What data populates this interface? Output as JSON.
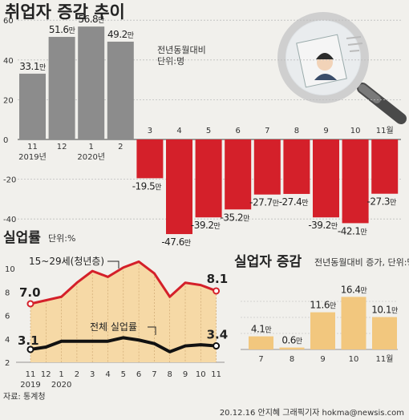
{
  "chart_data": [
    {
      "type": "bar",
      "title": "취업자 증감 추이",
      "note_lines": [
        "전년동월대비",
        "단위:명"
      ],
      "categories": [
        "11",
        "12",
        "1",
        "2",
        "3",
        "4",
        "5",
        "6",
        "7",
        "8",
        "9",
        "10",
        "11월"
      ],
      "year_labels": [
        {
          "text": "2019년",
          "at": 0
        },
        {
          "text": "2020년",
          "at": 2
        }
      ],
      "values": [
        33.1,
        51.6,
        56.8,
        49.2,
        -19.5,
        -47.6,
        -39.2,
        -35.2,
        -27.7,
        -27.4,
        -39.2,
        -42.1,
        -27.3
      ],
      "value_labels": [
        "33.1만",
        "51.6만",
        "56.8만",
        "49.2만",
        "-19.5만",
        "-47.6만",
        "-39.2만",
        "-35.2만",
        "-27.7만",
        "-27.4만",
        "-39.2만",
        "-42.1만",
        "-27.3만"
      ],
      "y_ticks": [
        60,
        40,
        20,
        0,
        -20,
        -40
      ],
      "ylim": [
        -55,
        65
      ],
      "colors": {
        "positive": "#8c8c8c",
        "negative": "#d4202a"
      }
    },
    {
      "type": "line",
      "title": "실업률",
      "unit": "단위:%",
      "categories": [
        "11",
        "12",
        "1",
        "2",
        "3",
        "4",
        "5",
        "6",
        "7",
        "8",
        "9",
        "10",
        "11"
      ],
      "year_labels": [
        {
          "text": "2019",
          "at": 0
        },
        {
          "text": "2020",
          "at": 2
        }
      ],
      "y_ticks": [
        2,
        4,
        6,
        8,
        10
      ],
      "ylim": [
        2,
        11
      ],
      "series": [
        {
          "name": "15~29세(청년층)",
          "values": [
            7.0,
            7.3,
            7.6,
            8.8,
            9.8,
            9.3,
            10.1,
            10.6,
            9.6,
            7.6,
            8.8,
            8.6,
            8.1
          ],
          "color": "#d4202a",
          "start_label": "7.0",
          "end_label": "8.1"
        },
        {
          "name": "전체 실업률",
          "values": [
            3.1,
            3.3,
            3.8,
            3.8,
            3.8,
            3.8,
            4.1,
            3.9,
            3.6,
            2.9,
            3.4,
            3.5,
            3.4
          ],
          "color": "#111111",
          "start_label": "3.1",
          "end_label": "3.4"
        }
      ]
    },
    {
      "type": "bar",
      "title": "실업자 증감",
      "unit": "전년동월대비 증가, 단위:명",
      "categories": [
        "7",
        "8",
        "9",
        "10",
        "11월"
      ],
      "values": [
        4.1,
        0.6,
        11.6,
        16.4,
        10.1
      ],
      "value_labels": [
        "4.1만",
        "0.6만",
        "11.6만",
        "16.4만",
        "10.1만"
      ],
      "ylim": [
        0,
        20
      ],
      "colors": {
        "bar": "#f2c77e"
      }
    }
  ],
  "source": "자료: 통계청",
  "credit": "20.12.16 안지혜 그래픽기자 hokma@newsis.com"
}
